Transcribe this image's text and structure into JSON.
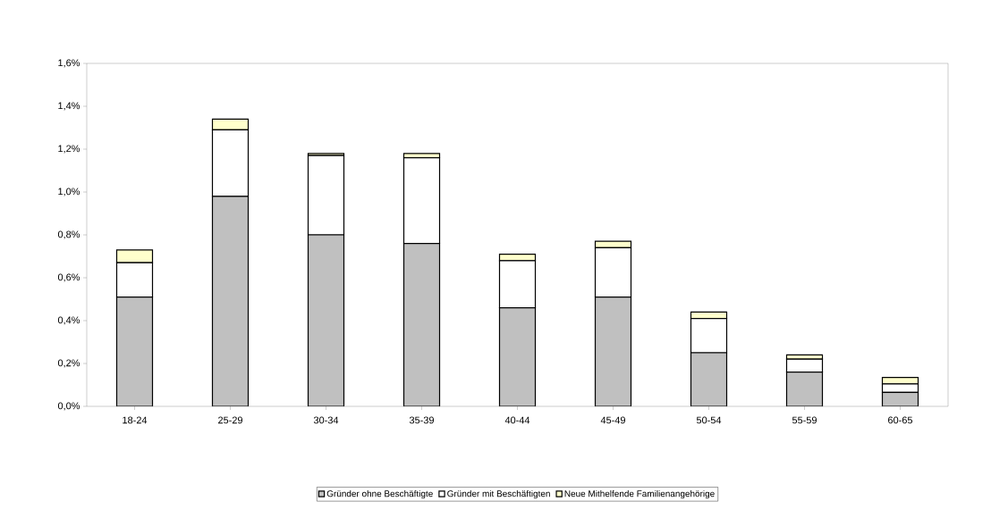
{
  "chart_data": {
    "type": "bar",
    "stacked": true,
    "categories": [
      "18-24",
      "25-29",
      "30-34",
      "35-39",
      "40-44",
      "45-49",
      "50-54",
      "55-59",
      "60-65"
    ],
    "series": [
      {
        "name": "Gründer ohne Beschäftigte",
        "color": "#c0c0c0",
        "values": [
          0.51,
          0.98,
          0.8,
          0.76,
          0.46,
          0.51,
          0.25,
          0.16,
          0.065
        ]
      },
      {
        "name": "Gründer mit Beschäftigten",
        "color": "#ffffff",
        "values": [
          0.16,
          0.31,
          0.37,
          0.4,
          0.22,
          0.23,
          0.16,
          0.06,
          0.04
        ]
      },
      {
        "name": "Neue Mithelfende Familienangehörige",
        "color": "#ffffcc",
        "values": [
          0.06,
          0.05,
          0.01,
          0.02,
          0.03,
          0.03,
          0.03,
          0.02,
          0.03
        ]
      }
    ],
    "ylim": [
      0,
      1.6
    ],
    "yticks": [
      {
        "value": 0,
        "label": "0,0%"
      },
      {
        "value": 0.2,
        "label": "0,2%"
      },
      {
        "value": 0.4,
        "label": "0,4%"
      },
      {
        "value": 0.6,
        "label": "0,6%"
      },
      {
        "value": 0.8,
        "label": "0,8%"
      },
      {
        "value": 1.0,
        "label": "1,0%"
      },
      {
        "value": 1.2,
        "label": "1,2%"
      },
      {
        "value": 1.4,
        "label": "1,4%"
      },
      {
        "value": 1.6,
        "label": "1,6%"
      }
    ],
    "grid": false,
    "legend": "bottom"
  }
}
